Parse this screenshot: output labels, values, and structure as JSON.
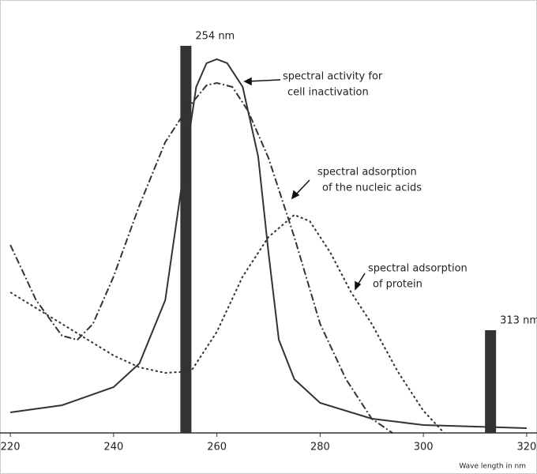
{
  "chart_data": {
    "type": "line",
    "xlabel": "Wave length in nm",
    "xlim": [
      218,
      322
    ],
    "ylim": [
      0,
      100
    ],
    "xticks": [
      220,
      240,
      260,
      280,
      300,
      320
    ],
    "bars": {
      "x": [
        254,
        313
      ],
      "values": [
        98,
        26
      ],
      "labels": [
        "254 nm",
        "313 nm"
      ],
      "color": "#333333"
    },
    "series": [
      {
        "label": [
          "spectral activity for",
          "cell inactivation"
        ],
        "style": "solid",
        "color": "#333333",
        "x": [
          220,
          230,
          240,
          245,
          250,
          254,
          256,
          258,
          260,
          262,
          265,
          268,
          270,
          272,
          275,
          280,
          290,
          300,
          310,
          320
        ],
        "values": [
          5.2,
          7,
          11.6,
          17.6,
          33.6,
          70,
          87.6,
          93.6,
          94.6,
          93.6,
          87.6,
          70,
          45.6,
          23.6,
          13.6,
          7.6,
          3.6,
          2,
          1.6,
          1.2
        ]
      },
      {
        "label": [
          "spectral adsorption",
          "of the nucleic acids"
        ],
        "style": "dashdot",
        "color": "#333333",
        "x": [
          220,
          225,
          230,
          233,
          236,
          240,
          245,
          250,
          254,
          258,
          260,
          263,
          266,
          270,
          275,
          280,
          285,
          290,
          294
        ],
        "values": [
          47.6,
          33.6,
          24.6,
          23.6,
          27.6,
          39.6,
          57.6,
          73.6,
          81.6,
          88,
          88.6,
          87.6,
          81.6,
          69.6,
          49.6,
          27.6,
          13.6,
          3.6,
          0
        ]
      },
      {
        "label": [
          "spectral adsorption",
          "of protein"
        ],
        "style": "dotted",
        "color": "#333333",
        "x": [
          220,
          230,
          240,
          245,
          250,
          255,
          260,
          265,
          270,
          275,
          278,
          282,
          286,
          290,
          295,
          300,
          304
        ],
        "values": [
          35.6,
          27.6,
          19.6,
          16.6,
          15.2,
          15.6,
          25.6,
          39.6,
          49.6,
          55.2,
          53.6,
          45.6,
          35.6,
          27.6,
          15.6,
          5.6,
          0
        ]
      }
    ]
  }
}
